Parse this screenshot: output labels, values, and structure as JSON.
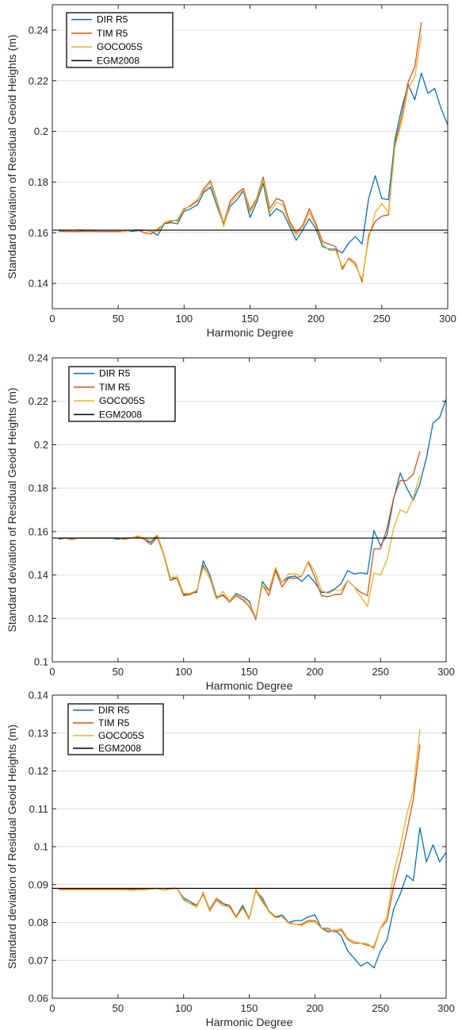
{
  "chart_data": [
    {
      "type": "line",
      "xlabel": "Harmonic Degree",
      "ylabel": "Standard deviation of Residual Geoid Heights (m)",
      "xlim": [
        0,
        300
      ],
      "ylim": [
        0.13,
        0.25
      ],
      "xticks": [
        0,
        50,
        100,
        150,
        200,
        250,
        300
      ],
      "yticks": [
        0.14,
        0.16,
        0.18,
        0.2,
        0.22,
        0.24
      ],
      "ytick_labels": [
        "0.14",
        "0.16",
        "0.18",
        "0.2",
        "0.22",
        "0.24"
      ],
      "grid": "horizontal",
      "legend_position": "top-left",
      "x": [
        5,
        10,
        15,
        20,
        25,
        30,
        35,
        40,
        45,
        50,
        55,
        60,
        65,
        70,
        75,
        80,
        85,
        90,
        95,
        100,
        105,
        110,
        115,
        120,
        125,
        130,
        135,
        140,
        145,
        150,
        155,
        160,
        165,
        170,
        175,
        180,
        185,
        190,
        195,
        200,
        205,
        210,
        215,
        220,
        225,
        230,
        235,
        240,
        245,
        250,
        255,
        260,
        265,
        270,
        275,
        280,
        285,
        290,
        295,
        300
      ],
      "series": [
        {
          "name": "DIR R5",
          "color": "#0072BD",
          "values": [
            0.161,
            0.161,
            0.1605,
            0.1605,
            0.161,
            0.161,
            0.1605,
            0.1605,
            0.1605,
            0.1605,
            0.161,
            0.1605,
            0.1608,
            0.161,
            0.1605,
            0.159,
            0.1635,
            0.164,
            0.1635,
            0.1685,
            0.1695,
            0.171,
            0.176,
            0.178,
            0.1705,
            0.163,
            0.1705,
            0.173,
            0.1765,
            0.166,
            0.172,
            0.1795,
            0.1665,
            0.1695,
            0.168,
            0.1625,
            0.157,
            0.161,
            0.1655,
            0.1615,
            0.1545,
            0.1535,
            0.1535,
            0.152,
            0.156,
            0.1585,
            0.1555,
            0.1735,
            0.1825,
            0.1735,
            0.173,
            0.197,
            0.209,
            0.2185,
            0.2125,
            0.223,
            0.215,
            0.217,
            0.209,
            0.2025
          ]
        },
        {
          "name": "TIM R5",
          "color": "#D95319",
          "values": [
            0.1605,
            0.1605,
            0.1605,
            0.1605,
            0.1605,
            0.1605,
            0.1605,
            0.1605,
            0.1605,
            0.1605,
            0.1605,
            0.161,
            0.161,
            0.16,
            0.1595,
            0.1615,
            0.1635,
            0.1645,
            0.165,
            0.1695,
            0.1705,
            0.1725,
            0.1775,
            0.1805,
            0.1725,
            0.1635,
            0.1725,
            0.1755,
            0.1775,
            0.169,
            0.1735,
            0.182,
            0.1695,
            0.1735,
            0.1725,
            0.1645,
            0.16,
            0.163,
            0.1695,
            0.1635,
            0.1565,
            0.1555,
            0.1545,
            0.1455,
            0.15,
            0.148,
            0.1405,
            0.159,
            0.1645,
            0.1665,
            0.167,
            0.195,
            0.206,
            0.2195,
            0.2255,
            0.243,
            null,
            null,
            null,
            null
          ]
        },
        {
          "name": "GOCO05S",
          "color": "#EDB120",
          "values": [
            0.1612,
            0.161,
            0.161,
            0.1612,
            0.161,
            0.161,
            0.161,
            0.161,
            0.161,
            0.161,
            0.1605,
            0.161,
            0.1612,
            0.161,
            0.1605,
            0.1605,
            0.164,
            0.165,
            0.1645,
            0.169,
            0.171,
            0.173,
            0.1765,
            0.1795,
            0.172,
            0.1625,
            0.1715,
            0.1745,
            0.177,
            0.168,
            0.173,
            0.181,
            0.168,
            0.172,
            0.171,
            0.1635,
            0.159,
            0.162,
            0.168,
            0.1625,
            0.1555,
            0.153,
            0.153,
            0.1465,
            0.1495,
            0.147,
            0.1415,
            0.1575,
            0.168,
            0.1715,
            0.168,
            0.194,
            0.2035,
            0.217,
            0.2215,
            0.238,
            null,
            null,
            null,
            null
          ]
        },
        {
          "name": "EGM2008",
          "color": "#000000",
          "reference": 0.161
        }
      ]
    },
    {
      "type": "line",
      "xlabel": "Harmonic Degree",
      "ylabel": "Standard deviation of Residual Geoid Heights (m)",
      "xlim": [
        0,
        300
      ],
      "ylim": [
        0.1,
        0.24
      ],
      "xticks": [
        0,
        50,
        100,
        150,
        200,
        250,
        300
      ],
      "yticks": [
        0.1,
        0.12,
        0.14,
        0.16,
        0.18,
        0.2,
        0.22,
        0.24
      ],
      "ytick_labels": [
        "0.1",
        "0.12",
        "0.14",
        "0.16",
        "0.18",
        "0.2",
        "0.22",
        "0.24"
      ],
      "grid": "horizontal",
      "legend_position": "top-left",
      "x": [
        5,
        10,
        15,
        20,
        25,
        30,
        35,
        40,
        45,
        50,
        55,
        60,
        65,
        70,
        75,
        80,
        85,
        90,
        95,
        100,
        105,
        110,
        115,
        120,
        125,
        130,
        135,
        140,
        145,
        150,
        155,
        160,
        165,
        170,
        175,
        180,
        185,
        190,
        195,
        200,
        205,
        210,
        215,
        220,
        225,
        230,
        235,
        240,
        245,
        250,
        255,
        260,
        265,
        270,
        275,
        280,
        285,
        290,
        295,
        300
      ],
      "series": [
        {
          "name": "DIR R5",
          "color": "#0072BD",
          "values": [
            0.1565,
            0.157,
            0.1565,
            0.157,
            0.157,
            0.157,
            0.157,
            0.157,
            0.157,
            0.1565,
            0.157,
            0.157,
            0.1575,
            0.1565,
            0.155,
            0.158,
            0.1495,
            0.1385,
            0.1385,
            0.131,
            0.1315,
            0.132,
            0.1465,
            0.14,
            0.13,
            0.1305,
            0.128,
            0.1315,
            0.13,
            0.128,
            0.1195,
            0.137,
            0.133,
            0.1425,
            0.1365,
            0.139,
            0.1395,
            0.137,
            0.14,
            0.1365,
            0.132,
            0.132,
            0.1335,
            0.136,
            0.142,
            0.1405,
            0.141,
            0.1405,
            0.1605,
            0.1535,
            0.1585,
            0.175,
            0.187,
            0.18,
            0.1745,
            0.182,
            0.194,
            0.21,
            0.2125,
            0.221
          ]
        },
        {
          "name": "TIM R5",
          "color": "#D95319",
          "values": [
            0.157,
            0.157,
            0.1565,
            0.157,
            0.157,
            0.157,
            0.157,
            0.157,
            0.157,
            0.157,
            0.1565,
            0.157,
            0.1575,
            0.1565,
            0.154,
            0.1575,
            0.149,
            0.1375,
            0.1385,
            0.1305,
            0.131,
            0.1325,
            0.1445,
            0.1385,
            0.129,
            0.131,
            0.1275,
            0.1305,
            0.1285,
            0.1255,
            0.12,
            0.1355,
            0.1305,
            0.142,
            0.1345,
            0.1385,
            0.1385,
            0.1395,
            0.146,
            0.139,
            0.1305,
            0.13,
            0.131,
            0.131,
            0.1375,
            0.1345,
            0.132,
            0.1305,
            0.152,
            0.152,
            0.1615,
            0.1755,
            0.1835,
            0.1835,
            0.1865,
            0.197,
            null,
            null,
            null,
            null
          ]
        },
        {
          "name": "GOCO05S",
          "color": "#EDB120",
          "values": [
            0.157,
            0.157,
            0.157,
            0.157,
            0.157,
            0.157,
            0.157,
            0.157,
            0.157,
            0.157,
            0.157,
            0.157,
            0.158,
            0.157,
            0.156,
            0.1585,
            0.1495,
            0.1385,
            0.1395,
            0.1315,
            0.1315,
            0.133,
            0.1435,
            0.139,
            0.129,
            0.1325,
            0.128,
            0.131,
            0.129,
            0.127,
            0.1205,
            0.1355,
            0.1325,
            0.1435,
            0.1365,
            0.1405,
            0.1405,
            0.1395,
            0.1465,
            0.1415,
            0.133,
            0.1315,
            0.133,
            0.133,
            0.1375,
            0.1345,
            0.13,
            0.1255,
            0.141,
            0.14,
            0.147,
            0.1615,
            0.17,
            0.1685,
            0.1755,
            0.186,
            null,
            null,
            null,
            null
          ]
        },
        {
          "name": "EGM2008",
          "color": "#000000",
          "reference": 0.157
        }
      ]
    },
    {
      "type": "line",
      "xlabel": "Harmonic Degree",
      "ylabel": "Standard deviation of Residual Geoid Heights (m)",
      "xlim": [
        0,
        300
      ],
      "ylim": [
        0.06,
        0.14
      ],
      "xticks": [
        0,
        50,
        100,
        150,
        200,
        250,
        300
      ],
      "yticks": [
        0.06,
        0.07,
        0.08,
        0.09,
        0.1,
        0.11,
        0.12,
        0.13,
        0.14
      ],
      "ytick_labels": [
        "0.06",
        "0.07",
        "0.08",
        "0.09",
        "0.1",
        "0.11",
        "0.12",
        "0.13",
        "0.14"
      ],
      "grid": "horizontal",
      "legend_position": "top-left",
      "x": [
        5,
        10,
        15,
        20,
        25,
        30,
        35,
        40,
        45,
        50,
        55,
        60,
        65,
        70,
        75,
        80,
        85,
        90,
        95,
        100,
        105,
        110,
        115,
        120,
        125,
        130,
        135,
        140,
        145,
        150,
        155,
        160,
        165,
        170,
        175,
        180,
        185,
        190,
        195,
        200,
        205,
        210,
        215,
        220,
        225,
        230,
        235,
        240,
        245,
        250,
        255,
        260,
        265,
        270,
        275,
        280,
        285,
        290,
        295,
        300
      ],
      "series": [
        {
          "name": "DIR R5",
          "color": "#0072BD",
          "values": [
            0.0888,
            0.0888,
            0.0888,
            0.0888,
            0.0888,
            0.0888,
            0.0888,
            0.0888,
            0.0888,
            0.0888,
            0.0888,
            0.0886,
            0.0886,
            0.0888,
            0.0888,
            0.089,
            0.0885,
            0.089,
            0.089,
            0.0865,
            0.0855,
            0.0845,
            0.0875,
            0.0835,
            0.0865,
            0.085,
            0.0845,
            0.0815,
            0.0845,
            0.081,
            0.0885,
            0.0865,
            0.083,
            0.0815,
            0.082,
            0.08,
            0.0805,
            0.0805,
            0.0815,
            0.082,
            0.0785,
            0.0775,
            0.078,
            0.0765,
            0.0725,
            0.0705,
            0.0685,
            0.0695,
            0.068,
            0.0725,
            0.0755,
            0.0835,
            0.0875,
            0.0925,
            0.091,
            0.105,
            0.096,
            0.1005,
            0.096,
            0.0985
          ]
        },
        {
          "name": "TIM R5",
          "color": "#D95319",
          "values": [
            0.0888,
            0.0888,
            0.0888,
            0.0888,
            0.0888,
            0.0888,
            0.0888,
            0.0888,
            0.0888,
            0.0888,
            0.0888,
            0.0888,
            0.0888,
            0.0888,
            0.0888,
            0.089,
            0.0885,
            0.089,
            0.089,
            0.086,
            0.085,
            0.0845,
            0.0875,
            0.083,
            0.086,
            0.0845,
            0.0845,
            0.0815,
            0.084,
            0.081,
            0.0885,
            0.0855,
            0.083,
            0.0815,
            0.0815,
            0.08,
            0.0795,
            0.0795,
            0.0805,
            0.0805,
            0.0785,
            0.0785,
            0.0775,
            0.078,
            0.0755,
            0.0745,
            0.0745,
            0.074,
            0.0735,
            0.0785,
            0.0805,
            0.0895,
            0.096,
            0.104,
            0.1125,
            0.127,
            null,
            null,
            null,
            null
          ]
        },
        {
          "name": "GOCO05S",
          "color": "#EDB120",
          "values": [
            0.0886,
            0.0886,
            0.0886,
            0.0886,
            0.0886,
            0.0886,
            0.0886,
            0.0886,
            0.0886,
            0.0886,
            0.0886,
            0.0885,
            0.0886,
            0.0886,
            0.0888,
            0.089,
            0.0885,
            0.0888,
            0.089,
            0.0862,
            0.085,
            0.084,
            0.088,
            0.0832,
            0.0865,
            0.0845,
            0.084,
            0.0812,
            0.0838,
            0.0808,
            0.0888,
            0.086,
            0.0828,
            0.0812,
            0.0815,
            0.0798,
            0.0795,
            0.0792,
            0.0802,
            0.0802,
            0.0785,
            0.078,
            0.0778,
            0.0785,
            0.0758,
            0.075,
            0.0745,
            0.0745,
            0.073,
            0.0785,
            0.0815,
            0.093,
            0.1,
            0.1085,
            0.115,
            0.131,
            null,
            null,
            null,
            null
          ]
        },
        {
          "name": "EGM2008",
          "color": "#000000",
          "reference": 0.089
        }
      ]
    }
  ]
}
